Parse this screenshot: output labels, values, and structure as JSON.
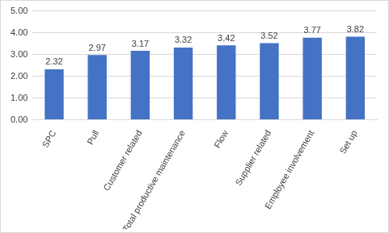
{
  "chart_data": {
    "type": "bar",
    "categories": [
      "SPC",
      "Pull",
      "Customer related",
      "Total productive maintenance",
      "Flow",
      "Supplier related",
      "Employee involvement",
      "Set up"
    ],
    "values": [
      2.32,
      2.97,
      3.17,
      3.32,
      3.42,
      3.52,
      3.77,
      3.82
    ],
    "color": "#4472c4",
    "ylim": [
      0,
      5
    ],
    "yticks": [
      {
        "value": 0,
        "label": "0.00"
      },
      {
        "value": 1,
        "label": "1.00"
      },
      {
        "value": 2,
        "label": "2.00"
      },
      {
        "value": 3,
        "label": "3.00"
      },
      {
        "value": 4,
        "label": "4.00"
      },
      {
        "value": 5,
        "label": "5.00"
      }
    ],
    "grid": true,
    "data_labels": true
  }
}
